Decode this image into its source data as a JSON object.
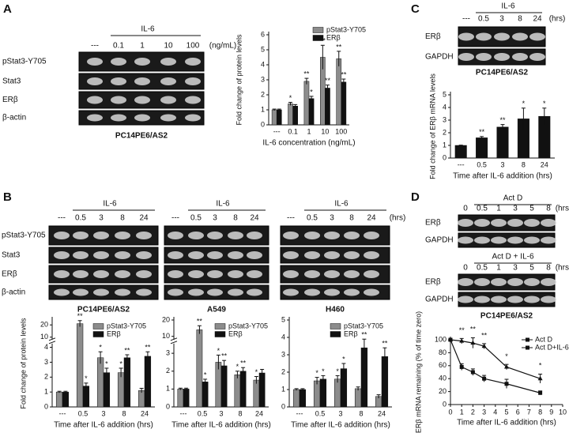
{
  "panel_letters": [
    "A",
    "B",
    "C",
    "D"
  ],
  "blots": [
    {
      "header": "IL-6",
      "lanes": [
        "---",
        "0.1",
        "1",
        "10",
        "100",
        "(ng/mL)"
      ],
      "rows": [
        "pStat3-Y705",
        "Stat3",
        "ERβ",
        "β-actin"
      ],
      "cell_line": "PC14PE6/AS2"
    },
    {
      "header": "IL-6",
      "lanes": [
        "---",
        "0.5",
        "3",
        "8",
        "24"
      ],
      "rows": [
        "pStat3-Y705",
        "Stat3",
        "ERβ",
        "β-actin"
      ],
      "cell_line": "PC14PE6/AS2"
    },
    {
      "header": "IL-6",
      "lanes": [
        "---",
        "0.5",
        "3",
        "8",
        "24"
      ],
      "rows": [],
      "cell_line": "A549"
    },
    {
      "header": "IL-6",
      "lanes": [
        "---",
        "0.5",
        "3",
        "8",
        "24",
        "(hrs)"
      ],
      "rows": [],
      "cell_line": "H460"
    },
    {
      "header": "IL-6",
      "lanes": [
        "---",
        "0.5",
        "3",
        "8",
        "24",
        "(hrs)"
      ],
      "rows": [
        "ERβ",
        "GAPDH"
      ],
      "cell_line": "PC14PE6/AS2"
    },
    {
      "header": "Act D",
      "lanes": [
        "0",
        "0.5",
        "1",
        "3",
        "5",
        "8",
        "(hrs)"
      ],
      "rows": [
        "ERβ",
        "GAPDH"
      ]
    },
    {
      "header": "Act D + IL-6",
      "lanes": [
        "0",
        "0.5",
        "1",
        "3",
        "5",
        "8",
        "(hrs)"
      ],
      "rows": [
        "ERβ",
        "GAPDH"
      ],
      "cell_line": "PC14PE6/AS2"
    }
  ],
  "chart_data": [
    {
      "type": "bar",
      "y_label": "Fold change of protein levels",
      "x_label": "IL-6 concentration (ng/mL)",
      "categories": [
        "---",
        "0.1",
        "1",
        "10",
        "100"
      ],
      "ylim": [
        0,
        6
      ],
      "yticks": [
        0,
        1,
        2,
        3,
        4,
        5,
        6
      ],
      "legend": "upper right",
      "series": [
        {
          "name": "pStat3-Y705",
          "color": "#8c8c8c",
          "values": [
            1,
            1.4,
            2.9,
            4.5,
            4.4
          ],
          "errors": [
            0.05,
            0.1,
            0.2,
            0.8,
            0.5
          ],
          "significance": [
            null,
            "*",
            "**",
            "**",
            "**"
          ]
        },
        {
          "name": "ERβ",
          "color": "#111111",
          "values": [
            1,
            1.25,
            1.75,
            2.45,
            2.85
          ],
          "errors": [
            0.05,
            0.1,
            0.15,
            0.2,
            0.2
          ],
          "significance": [
            null,
            null,
            "*",
            "**",
            "**"
          ]
        }
      ]
    },
    {
      "type": "bar",
      "y_label": "Fold change of protein levels",
      "x_label": "Time after IL-6 addition (hrs)",
      "categories": [
        "---",
        "0.5",
        "3",
        "8",
        "24"
      ],
      "ylim": [
        0,
        24
      ],
      "axis_break": [
        4.2,
        8
      ],
      "yticks": [
        0,
        1,
        2,
        3,
        4,
        10,
        20
      ],
      "legend": "upper right",
      "series": [
        {
          "name": "pStat3-Y705",
          "color": "#8c8c8c",
          "values": [
            1,
            21,
            3.3,
            2.3,
            1.1
          ],
          "errors": [
            0.05,
            2.5,
            0.4,
            0.3,
            0.15
          ],
          "significance": [
            null,
            "**",
            "*",
            "*",
            null
          ]
        },
        {
          "name": "ERβ",
          "color": "#111111",
          "values": [
            1,
            1.4,
            2.3,
            3.3,
            3.4
          ],
          "errors": [
            0.05,
            0.2,
            0.3,
            0.2,
            0.3
          ],
          "significance": [
            null,
            "*",
            "*",
            "**",
            "**"
          ]
        }
      ]
    },
    {
      "type": "bar",
      "x_label": "Time after IL-6 addition (hrs)",
      "categories": [
        "---",
        "0.5",
        "3",
        "8",
        "24"
      ],
      "ylim": [
        0,
        20
      ],
      "axis_break": [
        3.5,
        8
      ],
      "yticks": [
        0,
        1,
        2,
        3,
        10,
        20
      ],
      "legend": "upper right",
      "series": [
        {
          "name": "pStat3-Y705",
          "color": "#8c8c8c",
          "values": [
            1,
            14,
            2.5,
            1.8,
            1.5
          ],
          "errors": [
            0.05,
            2.5,
            0.4,
            0.2,
            0.2
          ],
          "significance": [
            null,
            "**",
            "*",
            "*",
            "*"
          ]
        },
        {
          "name": "ERβ",
          "color": "#111111",
          "values": [
            1,
            1.4,
            2.3,
            2.0,
            1.9
          ],
          "errors": [
            0.05,
            0.15,
            0.3,
            0.2,
            0.2
          ],
          "significance": [
            null,
            "*",
            "**",
            "**",
            null
          ]
        }
      ]
    },
    {
      "type": "bar",
      "x_label": "Time after IL-6 addition (hrs)",
      "categories": [
        "---",
        "0.5",
        "3",
        "8",
        "24"
      ],
      "ylim": [
        0,
        5
      ],
      "yticks": [
        0,
        1,
        2,
        3,
        4,
        5
      ],
      "legend": "upper right",
      "series": [
        {
          "name": "pStat3-Y705",
          "color": "#8c8c8c",
          "values": [
            1,
            1.5,
            1.6,
            1.05,
            0.6
          ],
          "errors": [
            0.05,
            0.2,
            0.2,
            0.1,
            0.1
          ],
          "significance": [
            null,
            "*",
            "*",
            null,
            null
          ]
        },
        {
          "name": "ERβ",
          "color": "#111111",
          "values": [
            1,
            1.6,
            2.2,
            3.4,
            2.9
          ],
          "errors": [
            0.05,
            0.2,
            0.3,
            0.5,
            0.5
          ],
          "significance": [
            null,
            "*",
            "*",
            "**",
            "**"
          ]
        }
      ]
    },
    {
      "type": "bar",
      "y_label": "Fold change of ERβ mRNA levels",
      "x_label": "Time after IL-6 addition (hrs)",
      "categories": [
        "---",
        "0.5",
        "3",
        "8",
        "24"
      ],
      "ylim": [
        0,
        5
      ],
      "yticks": [
        0,
        1,
        2,
        3,
        4,
        5
      ],
      "series": [
        {
          "color": "#111111",
          "values": [
            1,
            1.6,
            2.45,
            3.1,
            3.3
          ],
          "errors": [
            0.02,
            0.1,
            0.2,
            0.85,
            0.65
          ],
          "significance": [
            null,
            "**",
            "**",
            "*",
            "*"
          ]
        }
      ]
    },
    {
      "type": "line",
      "y_label": "ERβ mRNA remaining (% of time zero)",
      "x_label": "Time after IL-6 addition (hrs)",
      "xlim": [
        0,
        10
      ],
      "xticks": [
        0,
        1,
        2,
        3,
        4,
        5,
        6,
        7,
        8,
        9,
        10
      ],
      "ylim": [
        0,
        100
      ],
      "yticks": [
        0,
        20,
        40,
        60,
        80,
        100
      ],
      "legend": "upper right",
      "x": [
        0,
        1,
        2,
        3,
        5,
        8
      ],
      "series": [
        {
          "name": "Act D",
          "color": "#111111",
          "marker": "square",
          "values": [
            100,
            58,
            50,
            40,
            32,
            18
          ],
          "errors": [
            2,
            5,
            5,
            5,
            7,
            3
          ]
        },
        {
          "name": "Act D+IL-6",
          "color": "#111111",
          "marker": "triangle",
          "values": [
            100,
            98,
            95,
            90,
            58,
            40
          ],
          "errors": [
            2,
            4,
            8,
            4,
            4,
            7
          ],
          "significance": [
            null,
            "**",
            "**",
            "**",
            "*",
            "*"
          ]
        }
      ]
    }
  ]
}
